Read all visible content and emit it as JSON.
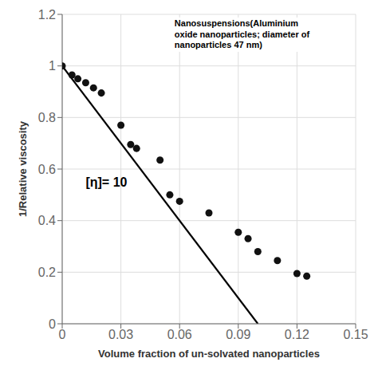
{
  "chart_data": {
    "type": "scatter",
    "xlabel": "Volume fraction of un-solvated nanoparticles",
    "ylabel": "1/Relative viscosity",
    "series": [
      {
        "type": "scatter",
        "marker": "circle",
        "color": "#111111",
        "x": [
          0.0,
          0.005,
          0.008,
          0.012,
          0.016,
          0.02,
          0.03,
          0.035,
          0.038,
          0.05,
          0.055,
          0.06,
          0.075,
          0.09,
          0.095,
          0.1,
          0.11,
          0.12,
          0.125
        ],
        "values": [
          1.0,
          0.965,
          0.95,
          0.935,
          0.915,
          0.895,
          0.77,
          0.695,
          0.68,
          0.635,
          0.5,
          0.475,
          0.43,
          0.355,
          0.33,
          0.28,
          0.245,
          0.195,
          0.185
        ]
      },
      {
        "type": "line",
        "color": "#000000",
        "x": [
          0.0,
          0.1
        ],
        "values": [
          1.0,
          0.0
        ]
      }
    ],
    "annotations": [
      "[η]= 10",
      "Nanosuspensions(Aluminium\noxide nanoparticles; diameter of\nnanoparticles 47 nm)"
    ],
    "xlim": [
      0,
      0.15
    ],
    "ylim": [
      0,
      1.2
    ],
    "xticks": [
      0,
      0.03,
      0.06,
      0.09,
      0.12,
      0.15
    ],
    "yticks": [
      0,
      0.2,
      0.4,
      0.6,
      0.8,
      1.0,
      1.2
    ],
    "grid": true
  }
}
